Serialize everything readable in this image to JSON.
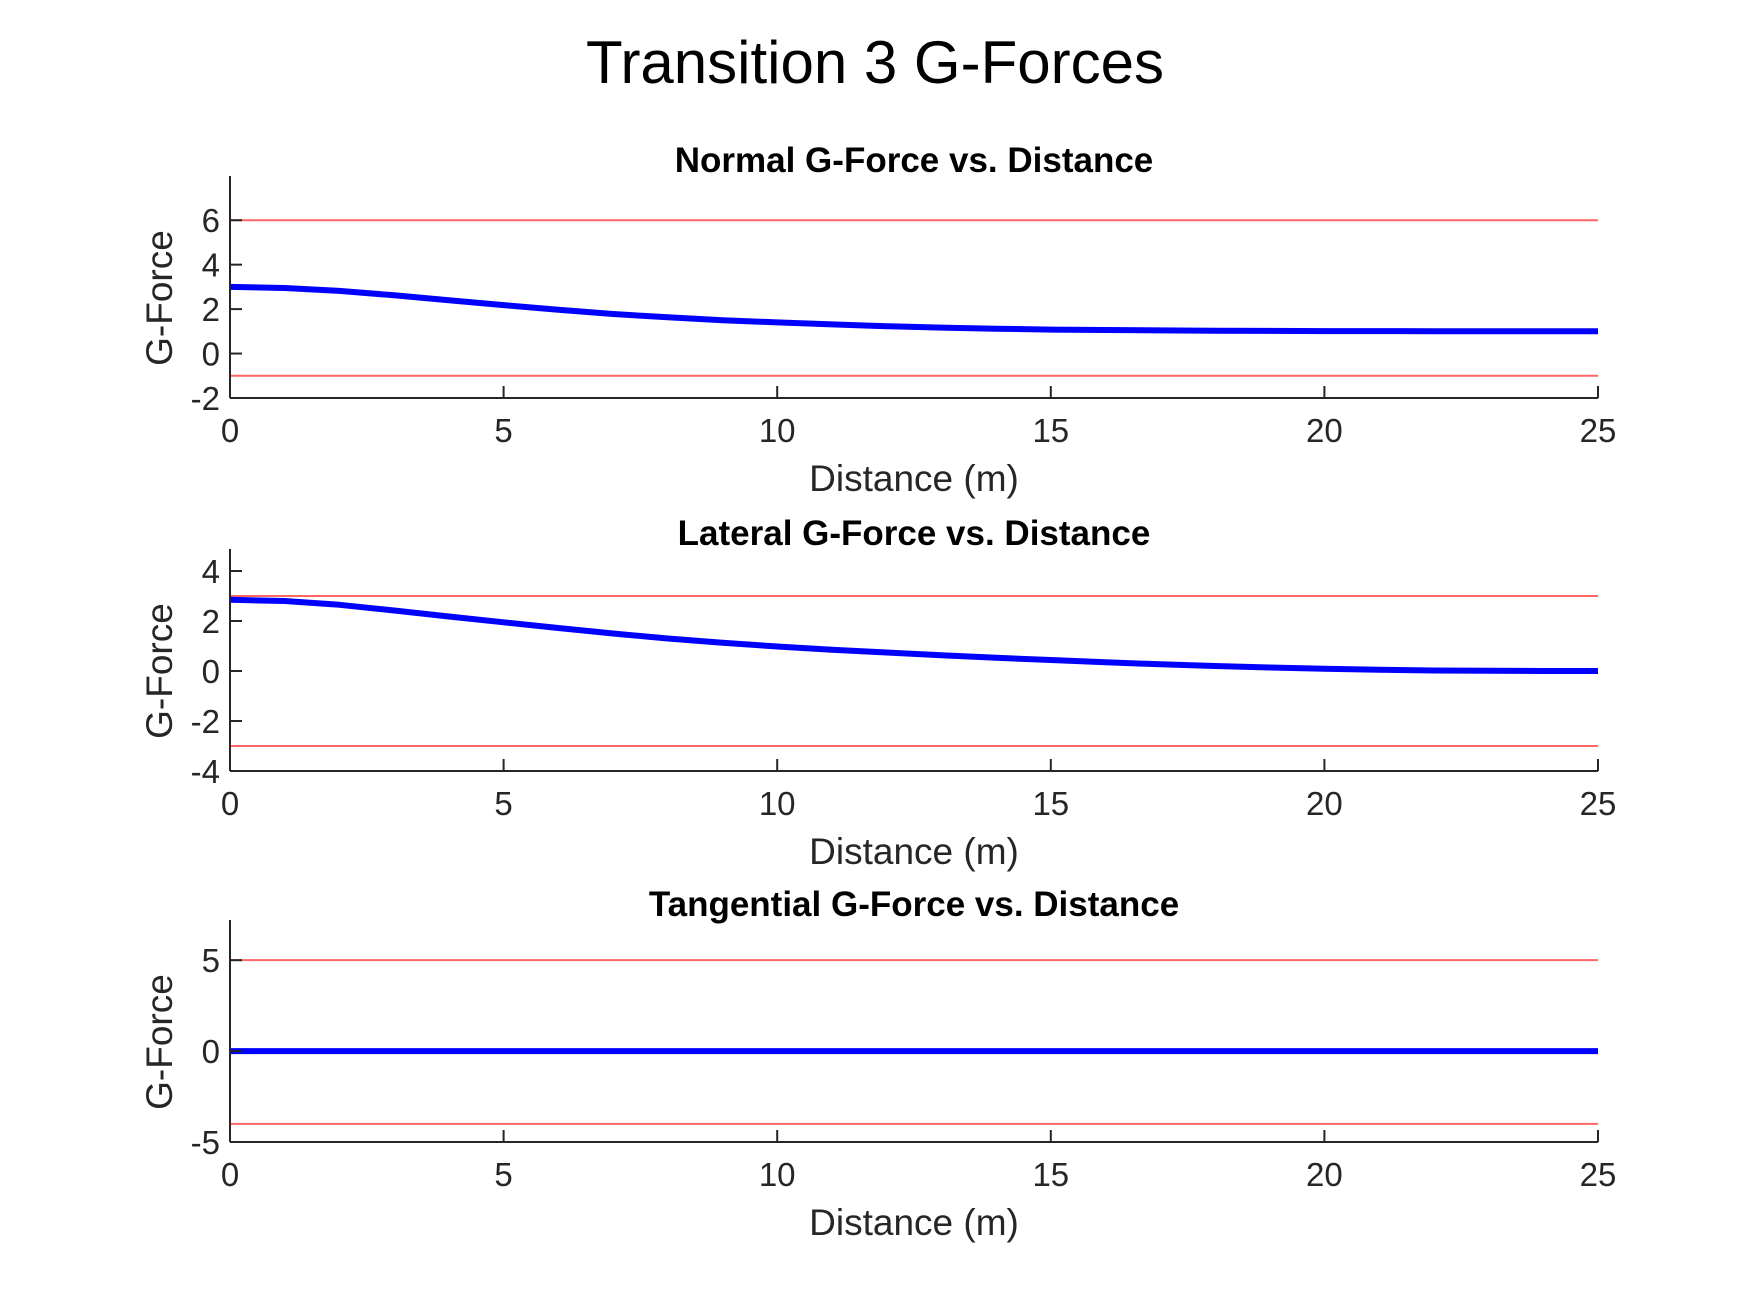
{
  "figure": {
    "title": "Transition 3 G-Forces"
  },
  "colors": {
    "series_line": "#0000ff",
    "limit_line": "#ff6666",
    "axis": "#262626",
    "text": "#262626",
    "title_text": "#000000"
  },
  "chart_data": [
    {
      "type": "line",
      "title": "Normal G-Force vs. Distance",
      "xlabel": "Distance (m)",
      "ylabel": "G-Force",
      "xlim": [
        0,
        25
      ],
      "ylim": [
        -2,
        7
      ],
      "xticks": [
        0,
        5,
        10,
        15,
        20,
        25
      ],
      "yticks": [
        -2,
        0,
        2,
        4,
        6
      ],
      "grid": false,
      "limits": [
        6,
        -1
      ],
      "series": [
        {
          "x": [
            0,
            1,
            2,
            3,
            4,
            5,
            6,
            7,
            8,
            9,
            10,
            11,
            12,
            13,
            14,
            15,
            16,
            17,
            18,
            19,
            20,
            21,
            22,
            23,
            24,
            25
          ],
          "y": [
            3.0,
            2.95,
            2.82,
            2.62,
            2.4,
            2.18,
            1.97,
            1.78,
            1.63,
            1.5,
            1.4,
            1.31,
            1.23,
            1.17,
            1.12,
            1.08,
            1.06,
            1.04,
            1.03,
            1.02,
            1.01,
            1.01,
            1.0,
            1.0,
            1.0,
            1.0
          ]
        }
      ]
    },
    {
      "type": "line",
      "title": "Lateral G-Force vs. Distance",
      "xlabel": "Distance (m)",
      "ylabel": "G-Force",
      "xlim": [
        0,
        25
      ],
      "ylim": [
        -4,
        4
      ],
      "xticks": [
        0,
        5,
        10,
        15,
        20,
        25
      ],
      "yticks": [
        -4,
        -2,
        0,
        2,
        4
      ],
      "grid": false,
      "limits": [
        3,
        -3
      ],
      "series": [
        {
          "x": [
            0,
            1,
            2,
            3,
            4,
            5,
            6,
            7,
            8,
            9,
            10,
            11,
            12,
            13,
            14,
            15,
            16,
            17,
            18,
            19,
            20,
            21,
            22,
            23,
            24,
            25
          ],
          "y": [
            2.85,
            2.8,
            2.65,
            2.42,
            2.18,
            1.95,
            1.72,
            1.5,
            1.3,
            1.13,
            0.98,
            0.85,
            0.74,
            0.63,
            0.53,
            0.44,
            0.35,
            0.27,
            0.2,
            0.14,
            0.09,
            0.05,
            0.02,
            0.01,
            0.0,
            0.0
          ]
        }
      ]
    },
    {
      "type": "line",
      "title": "Tangential G-Force vs. Distance",
      "xlabel": "Distance (m)",
      "ylabel": "G-Force",
      "xlim": [
        0,
        25
      ],
      "ylim": [
        -5,
        6
      ],
      "xticks": [
        0,
        5,
        10,
        15,
        20,
        25
      ],
      "yticks": [
        -5,
        0,
        5
      ],
      "grid": false,
      "limits": [
        5,
        -4
      ],
      "series": [
        {
          "x": [
            0,
            25
          ],
          "y": [
            0,
            0
          ]
        }
      ]
    }
  ]
}
